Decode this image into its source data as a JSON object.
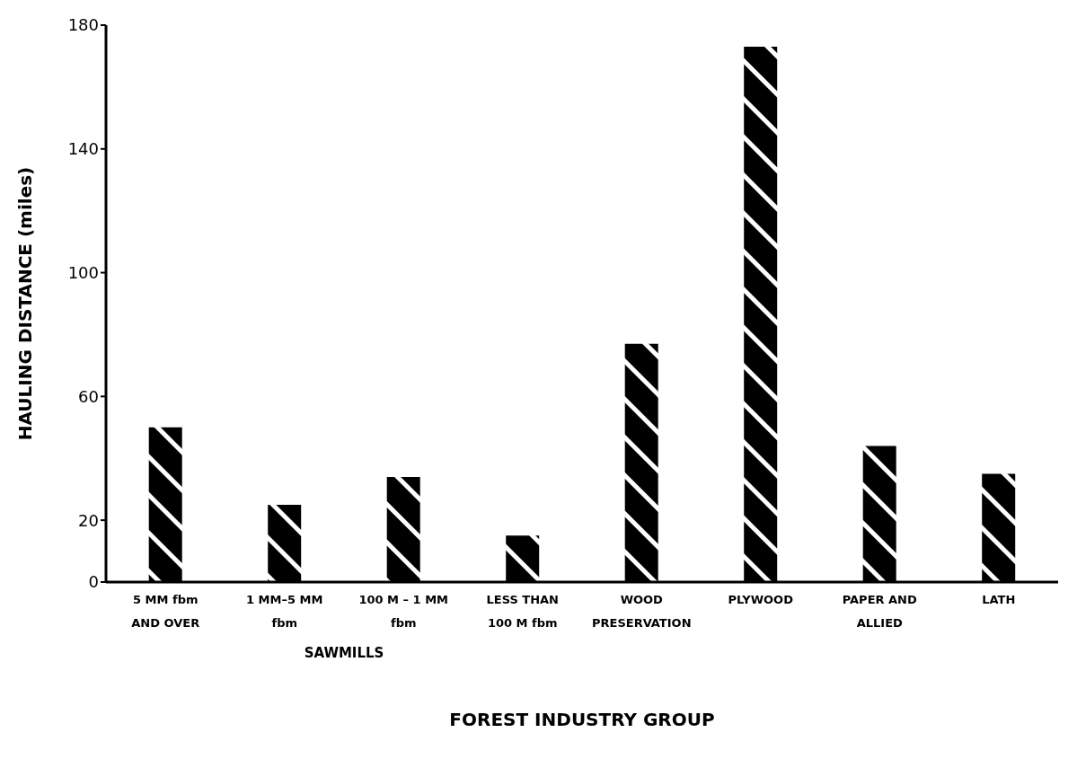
{
  "chart_data": {
    "type": "bar",
    "xlabel": "FOREST INDUSTRY GROUP",
    "ylabel": "HAULING DISTANCE  (miles)",
    "categories": [
      "5 MM fbm\nAND OVER",
      "1 MM–5 MM\nfbm",
      "100 M – 1 MM\nfbm",
      "LESS THAN\n100 M fbm",
      "WOOD\nPRESERVATION",
      "PLYWOOD",
      "PAPER AND\nALLIED",
      "LATH"
    ],
    "values": [
      50,
      25,
      34,
      15,
      77,
      173,
      44,
      35
    ],
    "color": "#000000",
    "ylim": [
      0,
      180
    ],
    "yticks": [
      0,
      20,
      60,
      100,
      140,
      180
    ],
    "annotations": [
      "SAWMILLS"
    ]
  }
}
